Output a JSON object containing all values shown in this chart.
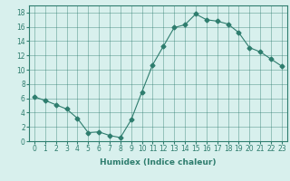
{
  "x": [
    0,
    1,
    2,
    3,
    4,
    5,
    6,
    7,
    8,
    9,
    10,
    11,
    12,
    13,
    14,
    15,
    16,
    17,
    18,
    19,
    20,
    21,
    22,
    23
  ],
  "y": [
    6.2,
    5.7,
    5.1,
    4.5,
    3.2,
    1.2,
    1.3,
    0.8,
    0.5,
    3.0,
    6.9,
    10.7,
    13.3,
    15.9,
    16.3,
    17.8,
    17.0,
    16.8,
    16.4,
    15.2,
    13.1,
    12.5,
    11.5,
    10.5
  ],
  "line_color": "#2e7d6e",
  "marker": "D",
  "markersize": 2.5,
  "bg_color": "#d8f0ed",
  "grid_color": "#2e7d6e",
  "xlabel": "Humidex (Indice chaleur)",
  "xlim": [
    -0.5,
    23.5
  ],
  "ylim": [
    0,
    19
  ],
  "xticks": [
    0,
    1,
    2,
    3,
    4,
    5,
    6,
    7,
    8,
    9,
    10,
    11,
    12,
    13,
    14,
    15,
    16,
    17,
    18,
    19,
    20,
    21,
    22,
    23
  ],
  "yticks": [
    0,
    2,
    4,
    6,
    8,
    10,
    12,
    14,
    16,
    18
  ],
  "xlabel_fontsize": 6.5,
  "tick_fontsize": 5.5
}
